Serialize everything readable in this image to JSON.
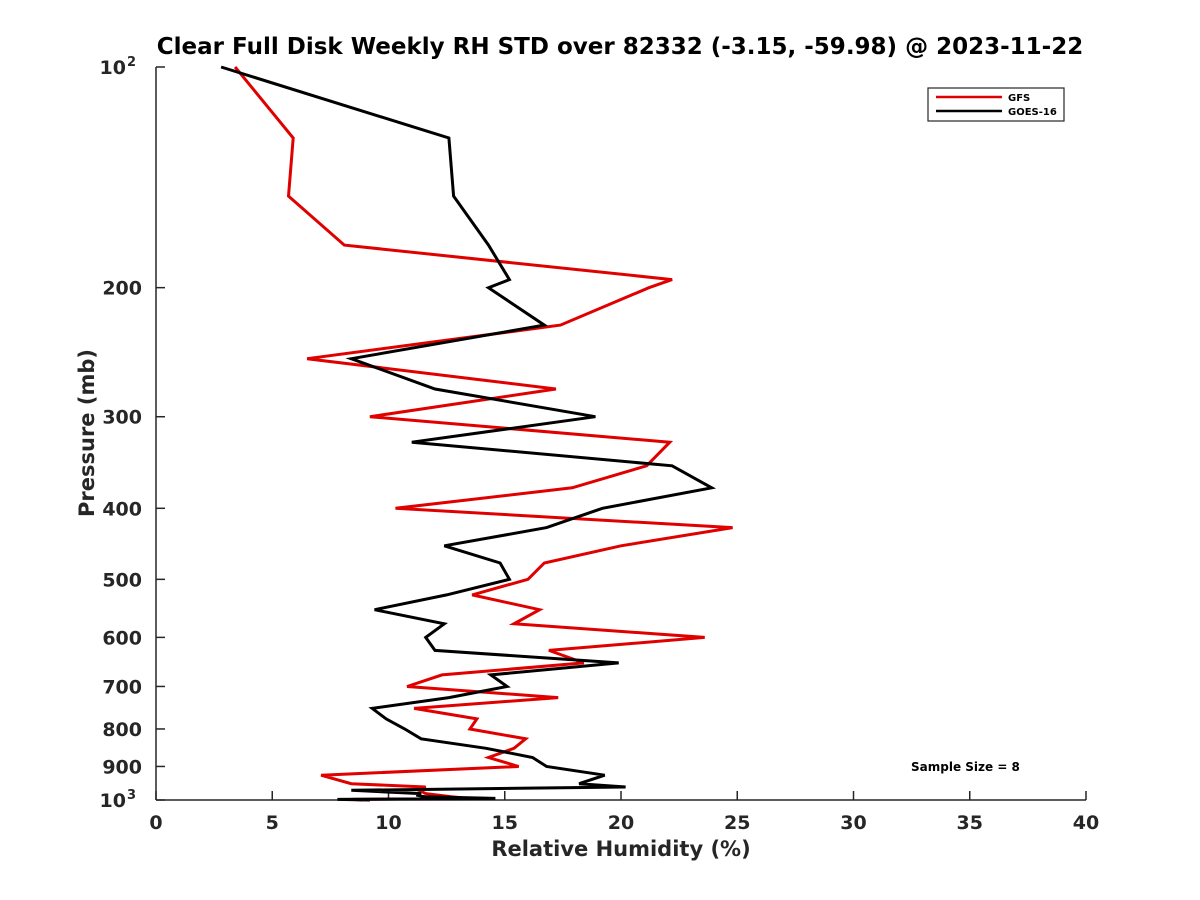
{
  "chart_data": {
    "type": "line",
    "title": "Clear Full Disk Weekly RH STD over 82332 (-3.15, -59.98) @ 2023-11-22",
    "xlabel": "Relative Humidity (%)",
    "ylabel": "Pressure (mb)",
    "xlim": [
      0,
      40
    ],
    "ylim": [
      100,
      1000
    ],
    "y_scale": "log",
    "y_reversed": true,
    "x_ticks": [
      0,
      5,
      10,
      15,
      20,
      25,
      30,
      35,
      40
    ],
    "y_ticks": [
      {
        "value": 100,
        "label": "10",
        "sup": "2"
      },
      {
        "value": 200,
        "label": "200",
        "sup": ""
      },
      {
        "value": 300,
        "label": "300",
        "sup": ""
      },
      {
        "value": 400,
        "label": "400",
        "sup": ""
      },
      {
        "value": 500,
        "label": "500",
        "sup": ""
      },
      {
        "value": 600,
        "label": "600",
        "sup": ""
      },
      {
        "value": 700,
        "label": "700",
        "sup": ""
      },
      {
        "value": 800,
        "label": "800",
        "sup": ""
      },
      {
        "value": 900,
        "label": "900",
        "sup": ""
      },
      {
        "value": 1000,
        "label": "10",
        "sup": "3"
      }
    ],
    "grid": false,
    "legend_position": "top-right",
    "annotation": "Sample Size = 8",
    "series": [
      {
        "name": "GFS",
        "color": "#e00000",
        "points": [
          [
            3.4,
            100
          ],
          [
            5.9,
            125
          ],
          [
            5.7,
            150
          ],
          [
            8.1,
            175
          ],
          [
            22.2,
            195
          ],
          [
            21.2,
            200
          ],
          [
            17.4,
            225
          ],
          [
            6.5,
            250
          ],
          [
            17.2,
            275
          ],
          [
            9.2,
            300
          ],
          [
            22.1,
            325
          ],
          [
            21.1,
            350
          ],
          [
            17.9,
            375
          ],
          [
            10.3,
            400
          ],
          [
            24.8,
            425
          ],
          [
            20.0,
            450
          ],
          [
            16.7,
            475
          ],
          [
            16.0,
            500
          ],
          [
            13.6,
            525
          ],
          [
            16.5,
            550
          ],
          [
            15.4,
            575
          ],
          [
            23.6,
            600
          ],
          [
            16.9,
            625
          ],
          [
            18.4,
            650
          ],
          [
            12.3,
            675
          ],
          [
            10.8,
            700
          ],
          [
            17.3,
            725
          ],
          [
            11.1,
            750
          ],
          [
            13.8,
            775
          ],
          [
            13.5,
            800
          ],
          [
            15.9,
            825
          ],
          [
            15.4,
            850
          ],
          [
            14.3,
            875
          ],
          [
            15.6,
            900
          ],
          [
            7.1,
            925
          ],
          [
            8.4,
            950
          ],
          [
            11.6,
            960
          ],
          [
            11.3,
            970
          ],
          [
            11.6,
            980
          ],
          [
            12.7,
            990
          ],
          [
            13.4,
            995
          ],
          [
            8.4,
            998
          ],
          [
            8.9,
            1000
          ]
        ]
      },
      {
        "name": "GOES-16",
        "color": "#000000",
        "points": [
          [
            2.8,
            100
          ],
          [
            12.6,
            125
          ],
          [
            12.8,
            150
          ],
          [
            14.3,
            175
          ],
          [
            15.2,
            195
          ],
          [
            14.3,
            200
          ],
          [
            16.7,
            225
          ],
          [
            8.4,
            250
          ],
          [
            12.0,
            275
          ],
          [
            18.9,
            300
          ],
          [
            11.0,
            325
          ],
          [
            22.2,
            350
          ],
          [
            23.9,
            375
          ],
          [
            19.2,
            400
          ],
          [
            16.8,
            425
          ],
          [
            12.4,
            450
          ],
          [
            14.8,
            475
          ],
          [
            15.2,
            500
          ],
          [
            12.5,
            525
          ],
          [
            9.4,
            550
          ],
          [
            12.4,
            575
          ],
          [
            11.6,
            600
          ],
          [
            12.0,
            625
          ],
          [
            19.9,
            650
          ],
          [
            14.4,
            675
          ],
          [
            15.1,
            700
          ],
          [
            12.6,
            725
          ],
          [
            9.3,
            750
          ],
          [
            9.9,
            775
          ],
          [
            10.7,
            800
          ],
          [
            11.4,
            825
          ],
          [
            14.2,
            850
          ],
          [
            16.2,
            875
          ],
          [
            16.8,
            900
          ],
          [
            19.3,
            925
          ],
          [
            18.2,
            950
          ],
          [
            20.2,
            960
          ],
          [
            8.4,
            970
          ],
          [
            11.4,
            980
          ],
          [
            11.2,
            985
          ],
          [
            11.6,
            990
          ],
          [
            14.6,
            995
          ],
          [
            7.8,
            998
          ],
          [
            9.2,
            1000
          ]
        ]
      }
    ]
  }
}
